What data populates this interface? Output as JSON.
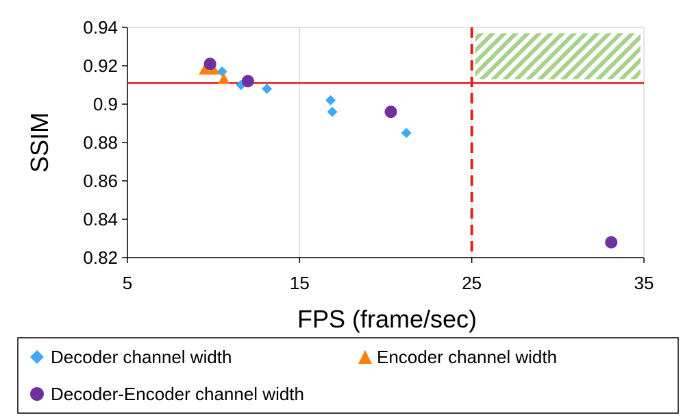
{
  "chart_data": {
    "type": "scatter",
    "xlabel": "FPS (frame/sec)",
    "ylabel": "SSIM",
    "xlim": [
      5,
      35
    ],
    "ylim": [
      0.82,
      0.94
    ],
    "x_ticks": [
      5,
      15,
      25,
      35
    ],
    "y_ticks": [
      "0.82",
      "0.84",
      "0.86",
      "0.88",
      "0.9",
      "0.92",
      "0.94"
    ],
    "grid": "vertical",
    "series": [
      {
        "name": "Decoder channel width",
        "marker": "diamond",
        "color": "#3fa9f5",
        "points": [
          [
            10.5,
            0.917
          ],
          [
            11.6,
            0.91
          ],
          [
            13.1,
            0.908
          ],
          [
            16.8,
            0.902
          ],
          [
            16.9,
            0.896
          ],
          [
            21.2,
            0.885
          ]
        ]
      },
      {
        "name": "Encoder channel width",
        "marker": "triangle",
        "color": "#ff7f0e",
        "points": [
          [
            9.5,
            0.918
          ],
          [
            10.0,
            0.918
          ],
          [
            10.6,
            0.913
          ]
        ]
      },
      {
        "name": "Decoder-Encoder channel width",
        "marker": "circle",
        "color": "#7030a0",
        "points": [
          [
            9.8,
            0.921
          ],
          [
            12.0,
            0.912
          ],
          [
            20.3,
            0.896
          ],
          [
            33.1,
            0.828
          ]
        ]
      }
    ],
    "reference_lines": {
      "horizontal": {
        "y": 0.911,
        "color": "#e0201b",
        "style": "solid"
      },
      "vertical": {
        "x": 25,
        "color": "#e0201b",
        "style": "dashed"
      }
    },
    "target_region": {
      "x": [
        25.2,
        34.8
      ],
      "y": [
        0.913,
        0.937
      ],
      "fill": "hatched",
      "color": "#a9d18e"
    },
    "legend_position": "bottom"
  },
  "colors": {
    "grid": "#d9d9d9",
    "axis": "#000000"
  }
}
